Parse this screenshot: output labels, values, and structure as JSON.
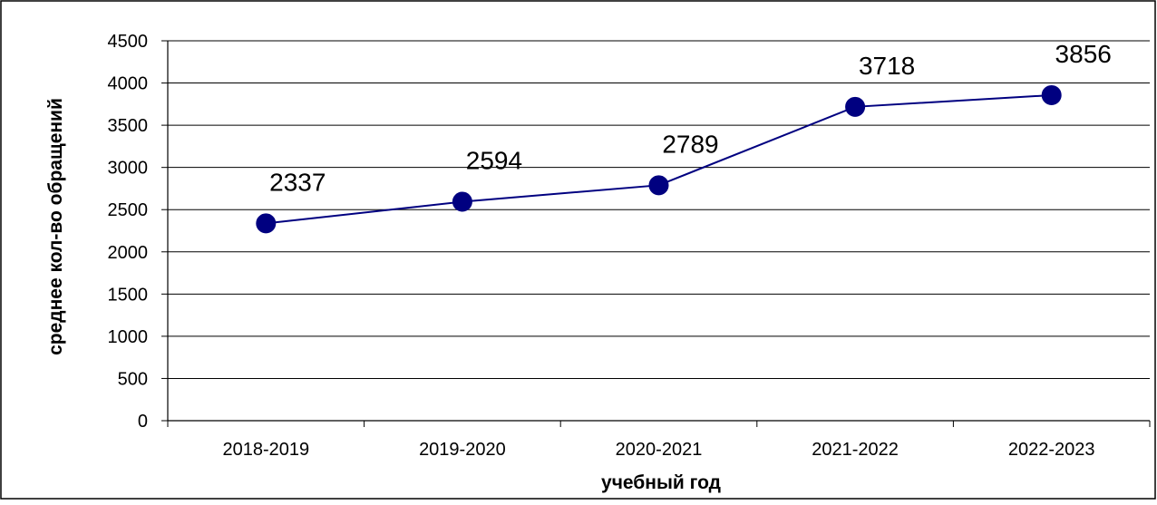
{
  "chart_data": {
    "type": "line",
    "title": "",
    "xlabel": "учебный год",
    "ylabel": "среднее кол-во обращений",
    "categories": [
      "2018-2019",
      "2019-2020",
      "2020-2021",
      "2021-2022",
      "2022-2023"
    ],
    "series": [
      {
        "values": [
          2337,
          2594,
          2789,
          3718,
          3856
        ]
      }
    ],
    "data_labels": [
      "2337",
      "2594",
      "2789",
      "3718",
      "3856"
    ],
    "ylim": [
      0,
      4500
    ],
    "yticks": [
      0,
      500,
      1000,
      1500,
      2000,
      2500,
      3000,
      3500,
      4000,
      4500
    ],
    "ytick_labels": [
      "0",
      "500",
      "1000",
      "1500",
      "2000",
      "2500",
      "3000",
      "3500",
      "4000",
      "4500"
    ],
    "grid": true,
    "legend": "none",
    "colors": {
      "line": "#000080",
      "marker": "#000080",
      "grid": "#000000",
      "frame": "#000000"
    }
  }
}
